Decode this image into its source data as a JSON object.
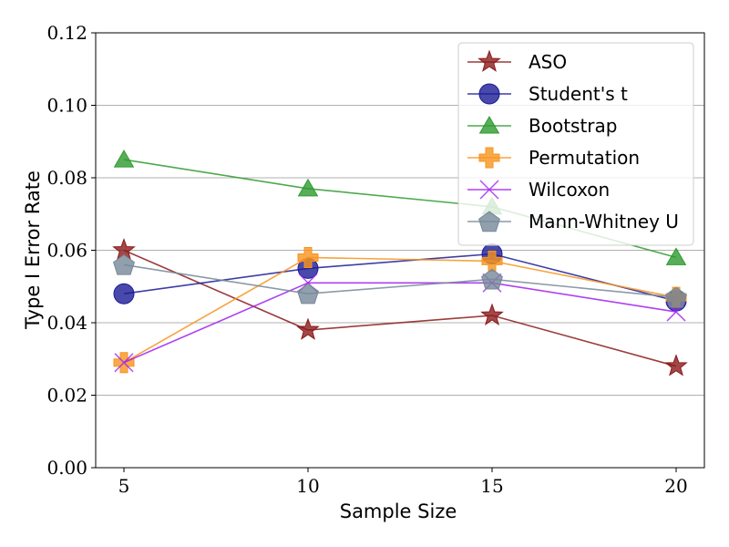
{
  "chart_data": {
    "type": "line",
    "x": [
      5,
      10,
      15,
      20
    ],
    "xlabel": "Sample Size",
    "ylabel": "Type I Error Rate",
    "xticks": [
      "5",
      "10",
      "15",
      "20"
    ],
    "yticks": [
      "0.00",
      "0.02",
      "0.04",
      "0.06",
      "0.08",
      "0.10",
      "0.12"
    ],
    "ylim": [
      0,
      0.12
    ],
    "grid": "horizontal",
    "legend_position": "top-right",
    "series": [
      {
        "name": "ASO",
        "values": [
          0.06,
          0.038,
          0.042,
          0.028
        ],
        "color": "#8b1a1a",
        "marker": "star"
      },
      {
        "name": "Student's t",
        "values": [
          0.048,
          0.055,
          0.059,
          0.046
        ],
        "color": "#1c1c96",
        "marker": "circle"
      },
      {
        "name": "Bootstrap",
        "values": [
          0.085,
          0.077,
          0.072,
          0.058
        ],
        "color": "#2e9a2e",
        "marker": "triangle"
      },
      {
        "name": "Permutation",
        "values": [
          0.029,
          0.058,
          0.057,
          0.047
        ],
        "color": "#f7941d",
        "marker": "plus"
      },
      {
        "name": "Wilcoxon",
        "values": [
          0.029,
          0.051,
          0.051,
          0.043
        ],
        "color": "#a020f0",
        "marker": "x"
      },
      {
        "name": "Mann-Whitney U",
        "values": [
          0.056,
          0.048,
          0.052,
          0.047
        ],
        "color": "#778899",
        "marker": "pentagon"
      }
    ]
  }
}
